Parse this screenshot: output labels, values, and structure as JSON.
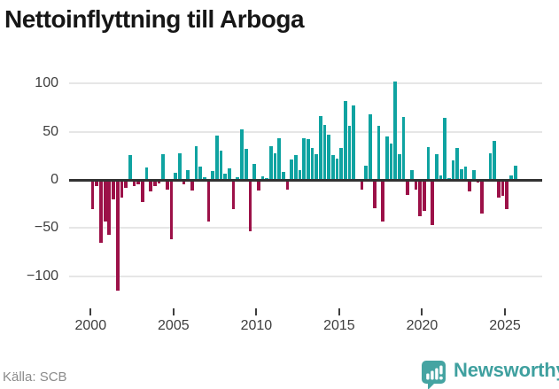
{
  "title": "Nettoinflyttning till Arboga",
  "source": "Källa: SCB",
  "branding": {
    "name": "Newsworthy",
    "icon": "newsworthy-speech-bubble-chart-icon",
    "color": "#3fa09f"
  },
  "colors": {
    "positive_bar": "#0fa3a1",
    "negative_bar": "#9c1148",
    "gridline": "#e6e6e6",
    "zero_line": "#323232",
    "axis_text": "#3e3e3e",
    "title_text": "#161616",
    "source_text": "#8b8b8b"
  },
  "chart_data": {
    "type": "bar",
    "title": "Nettoinflyttning till Arboga",
    "frequency": "quarterly",
    "x_start": {
      "year": 2000,
      "quarter": 1
    },
    "x_end": {
      "year": 2025,
      "quarter": 3
    },
    "x_tick_labels": [
      "2000",
      "2005",
      "2010",
      "2015",
      "2020",
      "2025"
    ],
    "y_ticks": [
      100,
      50,
      0,
      -50,
      -100
    ],
    "y_tick_labels": [
      "100",
      "50",
      "0",
      "−50",
      "−100"
    ],
    "ylim": [
      -125,
      112
    ],
    "grid": true,
    "legend": "none",
    "values": [
      -30,
      -6,
      -65,
      -43,
      -57,
      -20,
      -115,
      -18,
      -8,
      26,
      -6,
      -5,
      -23,
      13,
      -12,
      -6,
      -4,
      27,
      -10,
      -62,
      7,
      28,
      -5,
      10,
      -11,
      35,
      14,
      3,
      -43,
      9,
      46,
      30,
      6,
      12,
      -30,
      3,
      52,
      32,
      -53,
      17,
      -11,
      4,
      2,
      35,
      28,
      43,
      8,
      -10,
      21,
      26,
      10,
      43,
      42,
      33,
      27,
      66,
      57,
      47,
      26,
      22,
      33,
      82,
      56,
      77,
      1,
      -10,
      15,
      68,
      -29,
      56,
      -43,
      45,
      38,
      102,
      27,
      65,
      -16,
      10,
      -10,
      -38,
      -32,
      34,
      -47,
      27,
      5,
      64,
      2,
      20,
      33,
      11,
      14,
      -12,
      10,
      -3,
      -35,
      1,
      28,
      40,
      -18,
      -17,
      -30,
      5,
      15
    ]
  }
}
